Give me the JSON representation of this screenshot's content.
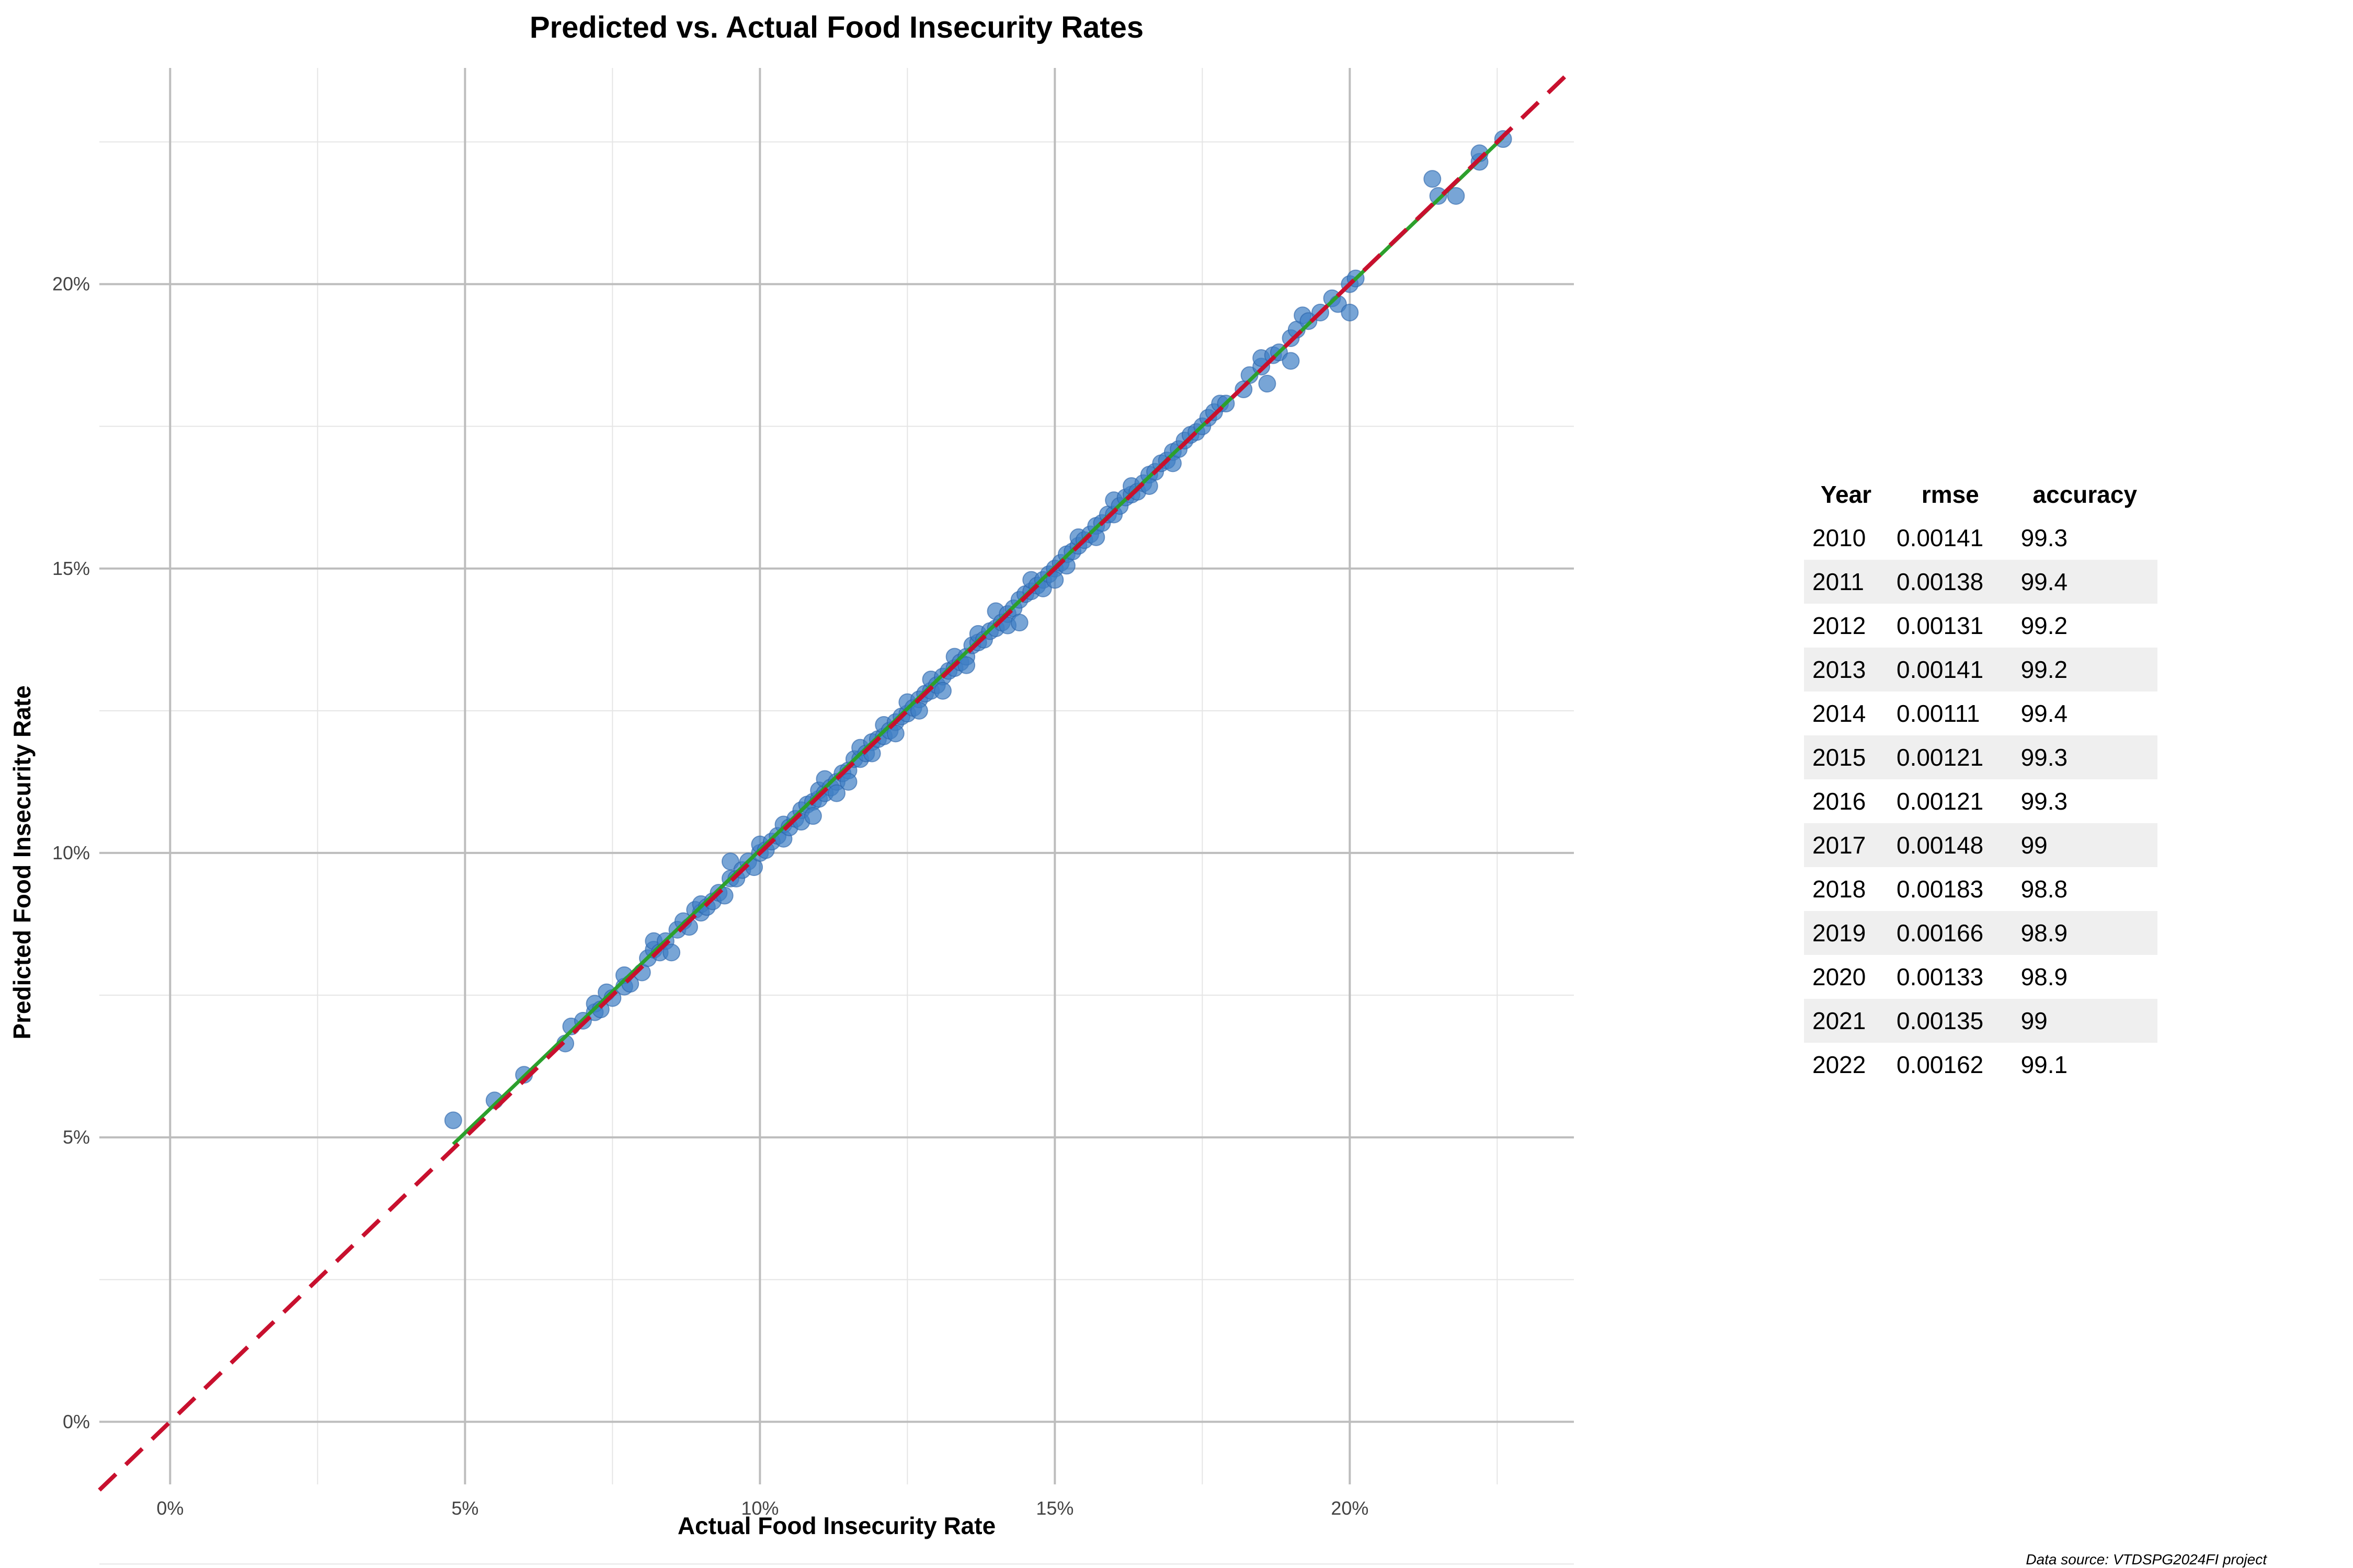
{
  "chart_data": {
    "type": "scatter",
    "title": "Predicted vs. Actual Food Insecurity Rates",
    "xlabel": "Actual Food Insecurity Rate",
    "ylabel": "Predicted Food Insecurity Rate",
    "xlim": [
      -0.012,
      0.238
    ],
    "ylim": [
      -0.011,
      0.238
    ],
    "x_ticks": [
      0,
      0.05,
      0.1,
      0.15,
      0.2
    ],
    "x_tick_labels": [
      "0%",
      "5%",
      "10%",
      "15%",
      "20%"
    ],
    "y_ticks": [
      0,
      0.05,
      0.1,
      0.15,
      0.2
    ],
    "y_tick_labels": [
      "0%",
      "5%",
      "10%",
      "15%",
      "20%"
    ],
    "grid": true,
    "colors": {
      "points": "#3f7fc4",
      "point_edge": "#2a62a8",
      "fit_line": "#2ca02c",
      "reference_line": "#c8102e",
      "grid_major": "#bdbdbd",
      "grid_minor": "#e5e5e5"
    },
    "reference_line": {
      "style": "dashed",
      "slope": 1,
      "intercept": 0
    },
    "fit_line": {
      "x": [
        0.048,
        0.226
      ],
      "y": [
        0.0488,
        0.2258
      ]
    },
    "points": [
      {
        "x": 0.048,
        "y": 0.053
      },
      {
        "x": 0.055,
        "y": 0.0565
      },
      {
        "x": 0.06,
        "y": 0.061
      },
      {
        "x": 0.067,
        "y": 0.0665
      },
      {
        "x": 0.068,
        "y": 0.0695
      },
      {
        "x": 0.07,
        "y": 0.0705
      },
      {
        "x": 0.072,
        "y": 0.072
      },
      {
        "x": 0.072,
        "y": 0.0735
      },
      {
        "x": 0.073,
        "y": 0.0725
      },
      {
        "x": 0.074,
        "y": 0.0755
      },
      {
        "x": 0.075,
        "y": 0.0745
      },
      {
        "x": 0.077,
        "y": 0.0765
      },
      {
        "x": 0.077,
        "y": 0.0785
      },
      {
        "x": 0.078,
        "y": 0.077
      },
      {
        "x": 0.08,
        "y": 0.079
      },
      {
        "x": 0.081,
        "y": 0.0815
      },
      {
        "x": 0.082,
        "y": 0.083
      },
      {
        "x": 0.082,
        "y": 0.0845
      },
      {
        "x": 0.083,
        "y": 0.0825
      },
      {
        "x": 0.084,
        "y": 0.0845
      },
      {
        "x": 0.085,
        "y": 0.0825
      },
      {
        "x": 0.086,
        "y": 0.0865
      },
      {
        "x": 0.087,
        "y": 0.088
      },
      {
        "x": 0.088,
        "y": 0.087
      },
      {
        "x": 0.089,
        "y": 0.09
      },
      {
        "x": 0.09,
        "y": 0.0895
      },
      {
        "x": 0.09,
        "y": 0.091
      },
      {
        "x": 0.091,
        "y": 0.0905
      },
      {
        "x": 0.092,
        "y": 0.0915
      },
      {
        "x": 0.093,
        "y": 0.093
      },
      {
        "x": 0.094,
        "y": 0.0925
      },
      {
        "x": 0.095,
        "y": 0.0955
      },
      {
        "x": 0.095,
        "y": 0.0985
      },
      {
        "x": 0.096,
        "y": 0.0955
      },
      {
        "x": 0.097,
        "y": 0.097
      },
      {
        "x": 0.098,
        "y": 0.0985
      },
      {
        "x": 0.099,
        "y": 0.0975
      },
      {
        "x": 0.1,
        "y": 0.1
      },
      {
        "x": 0.1,
        "y": 0.1015
      },
      {
        "x": 0.101,
        "y": 0.1005
      },
      {
        "x": 0.102,
        "y": 0.102
      },
      {
        "x": 0.103,
        "y": 0.103
      },
      {
        "x": 0.104,
        "y": 0.1025
      },
      {
        "x": 0.104,
        "y": 0.105
      },
      {
        "x": 0.105,
        "y": 0.1045
      },
      {
        "x": 0.106,
        "y": 0.106
      },
      {
        "x": 0.107,
        "y": 0.1075
      },
      {
        "x": 0.107,
        "y": 0.1055
      },
      {
        "x": 0.108,
        "y": 0.1085
      },
      {
        "x": 0.109,
        "y": 0.109
      },
      {
        "x": 0.109,
        "y": 0.1065
      },
      {
        "x": 0.11,
        "y": 0.1095
      },
      {
        "x": 0.11,
        "y": 0.111
      },
      {
        "x": 0.111,
        "y": 0.1105
      },
      {
        "x": 0.111,
        "y": 0.113
      },
      {
        "x": 0.112,
        "y": 0.1115
      },
      {
        "x": 0.113,
        "y": 0.1125
      },
      {
        "x": 0.113,
        "y": 0.1105
      },
      {
        "x": 0.114,
        "y": 0.114
      },
      {
        "x": 0.115,
        "y": 0.1145
      },
      {
        "x": 0.115,
        "y": 0.1125
      },
      {
        "x": 0.116,
        "y": 0.1165
      },
      {
        "x": 0.117,
        "y": 0.1165
      },
      {
        "x": 0.117,
        "y": 0.1185
      },
      {
        "x": 0.118,
        "y": 0.1175
      },
      {
        "x": 0.119,
        "y": 0.1195
      },
      {
        "x": 0.119,
        "y": 0.1175
      },
      {
        "x": 0.12,
        "y": 0.12
      },
      {
        "x": 0.121,
        "y": 0.1205
      },
      {
        "x": 0.121,
        "y": 0.1225
      },
      {
        "x": 0.122,
        "y": 0.1215
      },
      {
        "x": 0.123,
        "y": 0.123
      },
      {
        "x": 0.123,
        "y": 0.121
      },
      {
        "x": 0.124,
        "y": 0.124
      },
      {
        "x": 0.125,
        "y": 0.1245
      },
      {
        "x": 0.125,
        "y": 0.1265
      },
      {
        "x": 0.126,
        "y": 0.1255
      },
      {
        "x": 0.127,
        "y": 0.127
      },
      {
        "x": 0.127,
        "y": 0.125
      },
      {
        "x": 0.128,
        "y": 0.128
      },
      {
        "x": 0.129,
        "y": 0.1285
      },
      {
        "x": 0.129,
        "y": 0.1305
      },
      {
        "x": 0.13,
        "y": 0.1295
      },
      {
        "x": 0.131,
        "y": 0.131
      },
      {
        "x": 0.131,
        "y": 0.1285
      },
      {
        "x": 0.132,
        "y": 0.132
      },
      {
        "x": 0.133,
        "y": 0.1325
      },
      {
        "x": 0.133,
        "y": 0.1345
      },
      {
        "x": 0.134,
        "y": 0.1335
      },
      {
        "x": 0.135,
        "y": 0.1345
      },
      {
        "x": 0.135,
        "y": 0.133
      },
      {
        "x": 0.136,
        "y": 0.1365
      },
      {
        "x": 0.137,
        "y": 0.137
      },
      {
        "x": 0.137,
        "y": 0.1385
      },
      {
        "x": 0.138,
        "y": 0.1375
      },
      {
        "x": 0.139,
        "y": 0.139
      },
      {
        "x": 0.14,
        "y": 0.1395
      },
      {
        "x": 0.14,
        "y": 0.1425
      },
      {
        "x": 0.141,
        "y": 0.1405
      },
      {
        "x": 0.142,
        "y": 0.142
      },
      {
        "x": 0.142,
        "y": 0.14
      },
      {
        "x": 0.143,
        "y": 0.143
      },
      {
        "x": 0.144,
        "y": 0.1445
      },
      {
        "x": 0.144,
        "y": 0.1405
      },
      {
        "x": 0.145,
        "y": 0.1455
      },
      {
        "x": 0.146,
        "y": 0.146
      },
      {
        "x": 0.146,
        "y": 0.148
      },
      {
        "x": 0.147,
        "y": 0.147
      },
      {
        "x": 0.148,
        "y": 0.148
      },
      {
        "x": 0.148,
        "y": 0.1465
      },
      {
        "x": 0.149,
        "y": 0.149
      },
      {
        "x": 0.15,
        "y": 0.15
      },
      {
        "x": 0.15,
        "y": 0.148
      },
      {
        "x": 0.151,
        "y": 0.151
      },
      {
        "x": 0.152,
        "y": 0.1525
      },
      {
        "x": 0.152,
        "y": 0.1505
      },
      {
        "x": 0.153,
        "y": 0.153
      },
      {
        "x": 0.154,
        "y": 0.154
      },
      {
        "x": 0.154,
        "y": 0.1555
      },
      {
        "x": 0.155,
        "y": 0.155
      },
      {
        "x": 0.156,
        "y": 0.156
      },
      {
        "x": 0.157,
        "y": 0.1575
      },
      {
        "x": 0.157,
        "y": 0.1555
      },
      {
        "x": 0.158,
        "y": 0.158
      },
      {
        "x": 0.159,
        "y": 0.1595
      },
      {
        "x": 0.16,
        "y": 0.1595
      },
      {
        "x": 0.16,
        "y": 0.162
      },
      {
        "x": 0.161,
        "y": 0.161
      },
      {
        "x": 0.162,
        "y": 0.1625
      },
      {
        "x": 0.163,
        "y": 0.163
      },
      {
        "x": 0.163,
        "y": 0.1645
      },
      {
        "x": 0.164,
        "y": 0.1635
      },
      {
        "x": 0.165,
        "y": 0.165
      },
      {
        "x": 0.166,
        "y": 0.1665
      },
      {
        "x": 0.166,
        "y": 0.1645
      },
      {
        "x": 0.167,
        "y": 0.167
      },
      {
        "x": 0.168,
        "y": 0.1685
      },
      {
        "x": 0.169,
        "y": 0.169
      },
      {
        "x": 0.17,
        "y": 0.1705
      },
      {
        "x": 0.17,
        "y": 0.1685
      },
      {
        "x": 0.171,
        "y": 0.171
      },
      {
        "x": 0.172,
        "y": 0.1725
      },
      {
        "x": 0.173,
        "y": 0.1735
      },
      {
        "x": 0.174,
        "y": 0.174
      },
      {
        "x": 0.175,
        "y": 0.175
      },
      {
        "x": 0.176,
        "y": 0.1765
      },
      {
        "x": 0.177,
        "y": 0.1775
      },
      {
        "x": 0.178,
        "y": 0.179
      },
      {
        "x": 0.179,
        "y": 0.179
      },
      {
        "x": 0.182,
        "y": 0.1815
      },
      {
        "x": 0.183,
        "y": 0.184
      },
      {
        "x": 0.185,
        "y": 0.1855
      },
      {
        "x": 0.185,
        "y": 0.187
      },
      {
        "x": 0.186,
        "y": 0.1825
      },
      {
        "x": 0.187,
        "y": 0.1875
      },
      {
        "x": 0.188,
        "y": 0.188
      },
      {
        "x": 0.19,
        "y": 0.1865
      },
      {
        "x": 0.19,
        "y": 0.1905
      },
      {
        "x": 0.191,
        "y": 0.192
      },
      {
        "x": 0.192,
        "y": 0.1945
      },
      {
        "x": 0.193,
        "y": 0.1935
      },
      {
        "x": 0.195,
        "y": 0.195
      },
      {
        "x": 0.197,
        "y": 0.1975
      },
      {
        "x": 0.198,
        "y": 0.1965
      },
      {
        "x": 0.2,
        "y": 0.2
      },
      {
        "x": 0.2,
        "y": 0.195
      },
      {
        "x": 0.201,
        "y": 0.201
      },
      {
        "x": 0.214,
        "y": 0.2185
      },
      {
        "x": 0.215,
        "y": 0.2155
      },
      {
        "x": 0.218,
        "y": 0.2155
      },
      {
        "x": 0.222,
        "y": 0.2215
      },
      {
        "x": 0.222,
        "y": 0.223
      },
      {
        "x": 0.226,
        "y": 0.2255
      }
    ]
  },
  "stats_table": {
    "headers": [
      "Year",
      "rmse",
      "accuracy"
    ],
    "rows": [
      [
        "2010",
        "0.00141",
        "99.3"
      ],
      [
        "2011",
        "0.00138",
        "99.4"
      ],
      [
        "2012",
        "0.00131",
        "99.2"
      ],
      [
        "2013",
        "0.00141",
        "99.2"
      ],
      [
        "2014",
        "0.00111",
        "99.4"
      ],
      [
        "2015",
        "0.00121",
        "99.3"
      ],
      [
        "2016",
        "0.00121",
        "99.3"
      ],
      [
        "2017",
        "0.00148",
        "99"
      ],
      [
        "2018",
        "0.00183",
        "98.8"
      ],
      [
        "2019",
        "0.00166",
        "98.9"
      ],
      [
        "2020",
        "0.00133",
        "98.9"
      ],
      [
        "2021",
        "0.00135",
        "99"
      ],
      [
        "2022",
        "0.00162",
        "99.1"
      ]
    ]
  },
  "caption": "Data source: VTDSPG2024FI project"
}
